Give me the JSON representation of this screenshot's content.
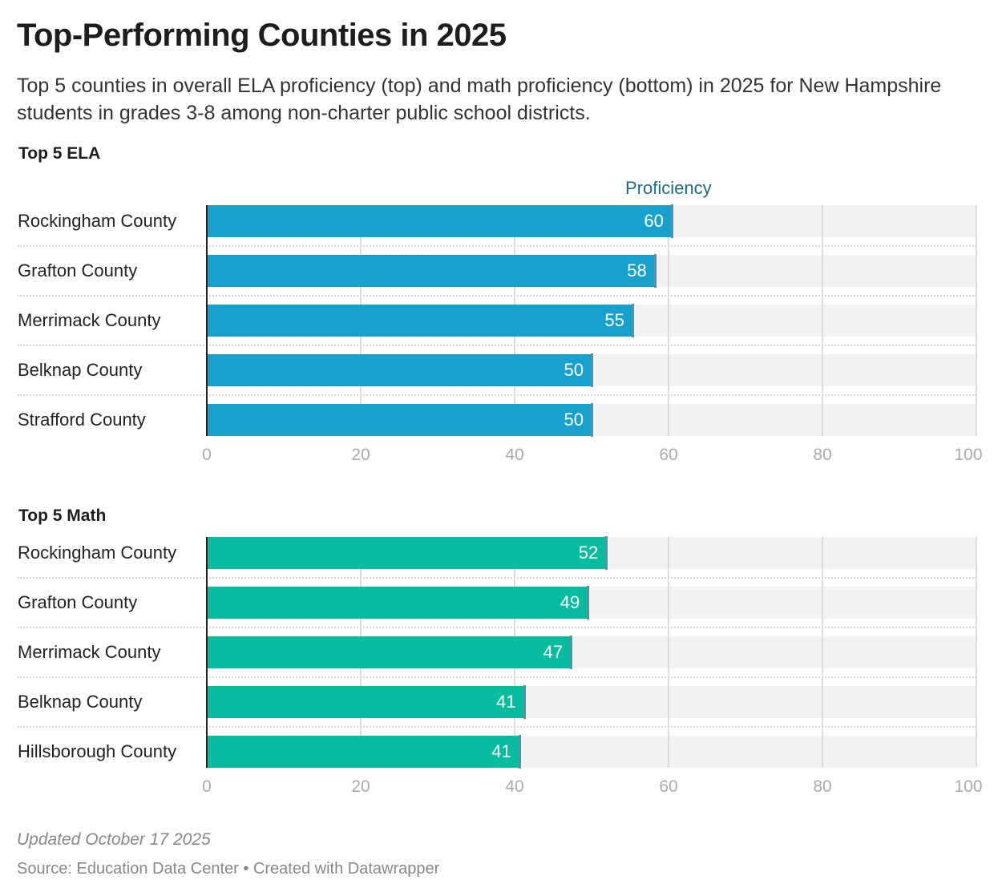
{
  "title": "Top-Performing Counties in 2025",
  "subtitle": "Top 5 counties in overall ELA proficiency (top) and math proficiency (bottom) in 2025 for New Hampshire students in grades 3-8 among non-charter public school districts.",
  "footer": {
    "updated": "Updated October 17 2025",
    "source": "Source: Education Data Center • Created with Datawrapper"
  },
  "chart_data": [
    {
      "type": "bar",
      "orientation": "horizontal",
      "title": "Top 5 ELA",
      "xlabel": "Proficiency",
      "xlim": [
        0,
        100
      ],
      "ticks": [
        "0",
        "20",
        "40",
        "60",
        "80",
        "100"
      ],
      "color": "#18a1cd",
      "categories": [
        "Rockingham County",
        "Grafton County",
        "Merrimack County",
        "Belknap County",
        "Strafford County"
      ],
      "values": [
        60.4,
        58.2,
        55.3,
        50,
        50
      ],
      "labels": [
        "60",
        "58",
        "55",
        "50",
        "50"
      ]
    },
    {
      "type": "bar",
      "orientation": "horizontal",
      "title": "Top 5 Math",
      "xlabel": "",
      "xlim": [
        0,
        100
      ],
      "ticks": [
        "0",
        "20",
        "40",
        "60",
        "80",
        "100"
      ],
      "color": "#09bb9f",
      "categories": [
        "Rockingham County",
        "Grafton County",
        "Merrimack County",
        "Belknap County",
        "Hillsborough County"
      ],
      "values": [
        51.9,
        49.5,
        47.3,
        41.2,
        40.6
      ],
      "labels": [
        "52",
        "49",
        "47",
        "41",
        "41"
      ]
    }
  ]
}
